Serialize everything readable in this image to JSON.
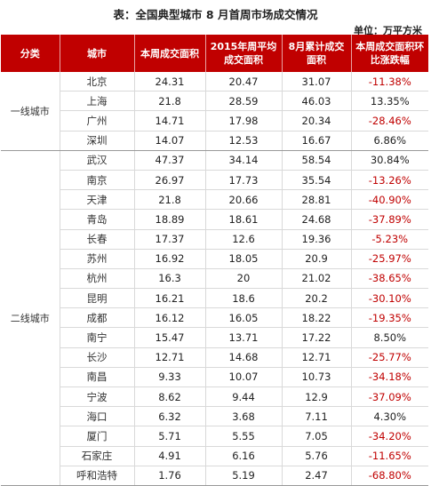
{
  "title": "表：全国典型城市 8 月首周市场成交情况",
  "unit": "单位：万平方米",
  "headers": [
    "分类",
    "城市",
    "本周成交面积",
    "2015年周平均成交面积",
    "8月累计成交面积",
    "本周成交面积环比涨跌幅"
  ],
  "groups": [
    {
      "category": "一线城市",
      "rows": [
        {
          "city": "北京",
          "week": "24.31",
          "avg2015": "20.47",
          "aug": "31.07",
          "change": "-11.38%"
        },
        {
          "city": "上海",
          "week": "21.8",
          "avg2015": "28.59",
          "aug": "46.03",
          "change": "13.35%"
        },
        {
          "city": "广州",
          "week": "14.71",
          "avg2015": "17.98",
          "aug": "20.34",
          "change": "-28.46%"
        },
        {
          "city": "深圳",
          "week": "14.07",
          "avg2015": "12.53",
          "aug": "16.67",
          "change": "6.86%"
        }
      ]
    },
    {
      "category": "二线城市",
      "rows": [
        {
          "city": "武汉",
          "week": "47.37",
          "avg2015": "34.14",
          "aug": "58.54",
          "change": "30.84%"
        },
        {
          "city": "南京",
          "week": "26.97",
          "avg2015": "17.73",
          "aug": "35.54",
          "change": "-13.26%"
        },
        {
          "city": "天津",
          "week": "21.8",
          "avg2015": "20.66",
          "aug": "28.81",
          "change": "-40.90%"
        },
        {
          "city": "青岛",
          "week": "18.89",
          "avg2015": "18.61",
          "aug": "24.68",
          "change": "-37.89%"
        },
        {
          "city": "长春",
          "week": "17.37",
          "avg2015": "12.6",
          "aug": "19.36",
          "change": "-5.23%"
        },
        {
          "city": "苏州",
          "week": "16.92",
          "avg2015": "18.05",
          "aug": "20.9",
          "change": "-25.97%"
        },
        {
          "city": "杭州",
          "week": "16.3",
          "avg2015": "20",
          "aug": "21.02",
          "change": "-38.65%"
        },
        {
          "city": "昆明",
          "week": "16.21",
          "avg2015": "18.6",
          "aug": "20.2",
          "change": "-30.10%"
        },
        {
          "city": "成都",
          "week": "16.12",
          "avg2015": "16.05",
          "aug": "18.22",
          "change": "-19.35%"
        },
        {
          "city": "南宁",
          "week": "15.47",
          "avg2015": "13.71",
          "aug": "17.22",
          "change": "8.50%"
        },
        {
          "city": "长沙",
          "week": "12.71",
          "avg2015": "14.68",
          "aug": "12.71",
          "change": "-25.77%"
        },
        {
          "city": "南昌",
          "week": "9.33",
          "avg2015": "10.07",
          "aug": "10.73",
          "change": "-34.18%"
        },
        {
          "city": "宁波",
          "week": "8.62",
          "avg2015": "9.44",
          "aug": "12.9",
          "change": "-37.09%"
        },
        {
          "city": "海口",
          "week": "6.32",
          "avg2015": "3.68",
          "aug": "7.11",
          "change": "4.30%"
        },
        {
          "city": "厦门",
          "week": "5.71",
          "avg2015": "5.55",
          "aug": "7.05",
          "change": "-34.20%"
        },
        {
          "city": "石家庄",
          "week": "4.91",
          "avg2015": "6.16",
          "aug": "5.76",
          "change": "-11.65%"
        },
        {
          "city": "呼和浩特",
          "week": "1.76",
          "avg2015": "5.19",
          "aug": "2.47",
          "change": "-68.80%"
        }
      ]
    }
  ],
  "colors": {
    "header_bg": "#c00000",
    "negative": "#c00000",
    "text": "#222222"
  }
}
